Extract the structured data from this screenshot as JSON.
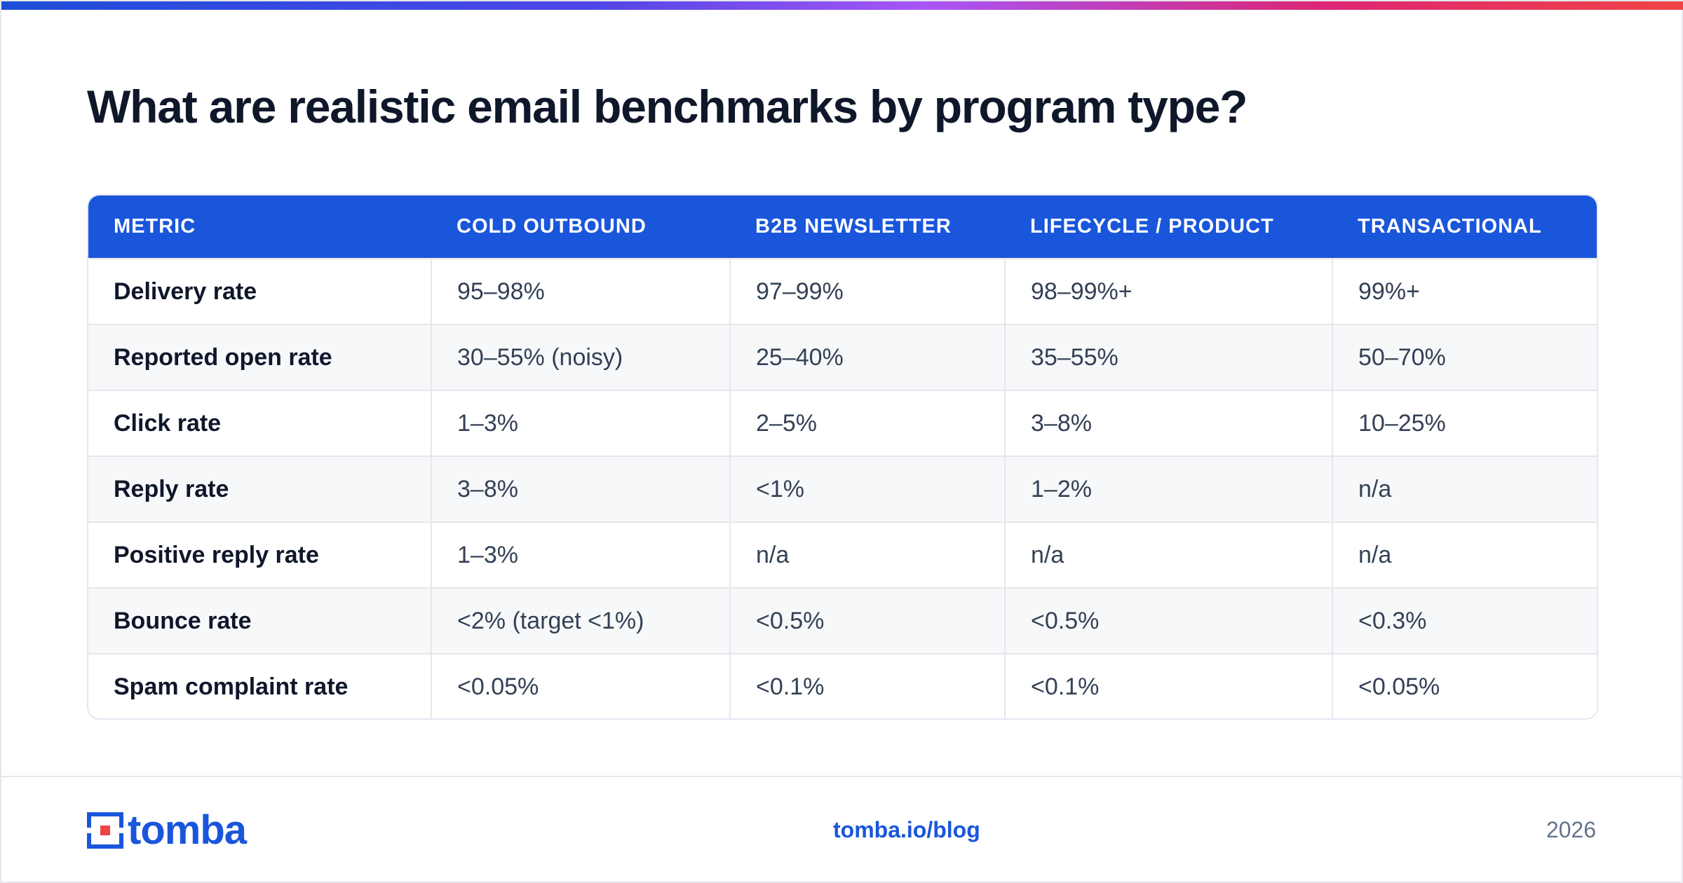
{
  "title": "What are realistic email benchmarks by program type?",
  "table": {
    "headers": [
      "METRIC",
      "COLD OUTBOUND",
      "B2B NEWSLETTER",
      "LIFECYCLE / PRODUCT",
      "TRANSACTIONAL"
    ],
    "rows": [
      [
        "Delivery rate",
        "95–98%",
        "97–99%",
        "98–99%+",
        "99%+"
      ],
      [
        "Reported open rate",
        "30–55% (noisy)",
        "25–40%",
        "35–55%",
        "50–70%"
      ],
      [
        "Click rate",
        "1–3%",
        "2–5%",
        "3–8%",
        "10–25%"
      ],
      [
        "Reply rate",
        "3–8%",
        "<1%",
        "1–2%",
        "n/a"
      ],
      [
        "Positive reply rate",
        "1–3%",
        "n/a",
        "n/a",
        "n/a"
      ],
      [
        "Bounce rate",
        "<2% (target <1%)",
        "<0.5%",
        "<0.5%",
        "<0.3%"
      ],
      [
        "Spam complaint rate",
        "<0.05%",
        "<0.1%",
        "<0.1%",
        "<0.05%"
      ]
    ]
  },
  "footer": {
    "logo_text": "tomba",
    "link": "tomba.io/blog",
    "year": "2026"
  },
  "colors": {
    "brand_blue": "#1a56db",
    "accent_red": "#ef4444",
    "title_text": "#0f172a"
  }
}
